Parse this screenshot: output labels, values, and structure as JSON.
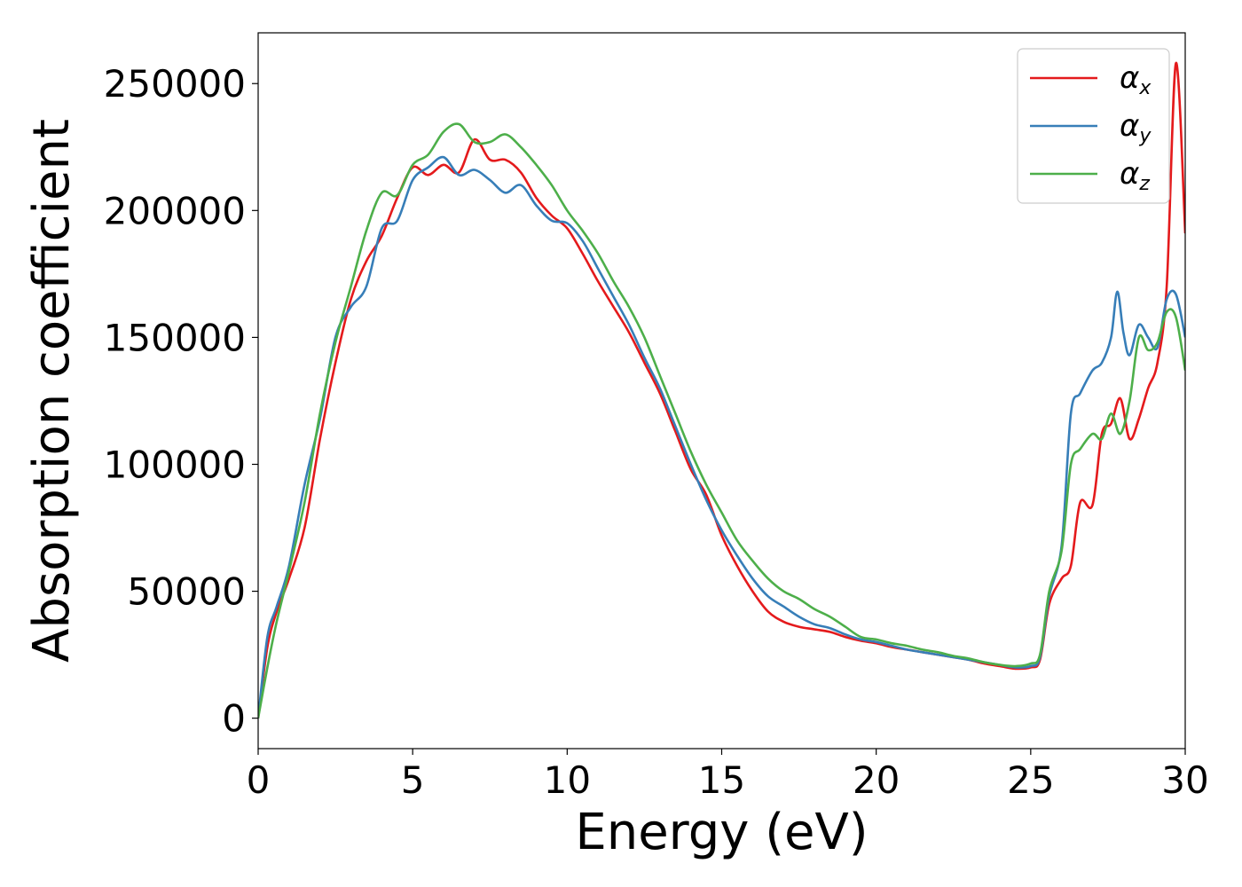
{
  "chart_data": {
    "type": "line",
    "title": "",
    "xlabel": "Energy (eV)",
    "ylabel": "Absorption coefficient",
    "xlim": [
      0,
      30
    ],
    "ylim": [
      -12000,
      270000
    ],
    "xticks": [
      0,
      5,
      10,
      15,
      20,
      25,
      30
    ],
    "xtick_labels": [
      "0",
      "5",
      "10",
      "15",
      "20",
      "25",
      "30"
    ],
    "yticks": [
      0,
      50000,
      100000,
      150000,
      200000,
      250000
    ],
    "ytick_labels": [
      "0",
      "50000",
      "100000",
      "150000",
      "200000",
      "250000"
    ],
    "grid": false,
    "legend_position": "top-right",
    "series": [
      {
        "name": "α_x",
        "legend_symbol": "α",
        "legend_subscript": "x",
        "color": "#e41a1c",
        "x": [
          0,
          0.3,
          0.6,
          1.0,
          1.5,
          2.0,
          2.5,
          3.0,
          3.5,
          4.0,
          4.5,
          5.0,
          5.5,
          6.0,
          6.5,
          7.0,
          7.5,
          8.0,
          8.5,
          9.0,
          9.5,
          10.0,
          10.5,
          11.0,
          11.5,
          12.0,
          12.5,
          13.0,
          13.5,
          14.0,
          14.5,
          15.0,
          15.5,
          16.0,
          16.5,
          17.0,
          17.5,
          18.0,
          18.5,
          19.0,
          19.5,
          20.0,
          20.5,
          21.0,
          21.5,
          22.0,
          22.5,
          23.0,
          23.5,
          24.0,
          24.5,
          25.0,
          25.3,
          25.6,
          26.0,
          26.3,
          26.6,
          27.0,
          27.3,
          27.6,
          27.9,
          28.2,
          28.5,
          28.8,
          29.1,
          29.4,
          29.7,
          30.0
        ],
        "y": [
          0,
          28000,
          42000,
          55000,
          75000,
          110000,
          140000,
          165000,
          180000,
          190000,
          205000,
          217000,
          214000,
          218000,
          215000,
          228000,
          220000,
          220000,
          215000,
          205000,
          198000,
          193000,
          183000,
          172000,
          162000,
          152000,
          140000,
          128000,
          113000,
          98000,
          88000,
          72000,
          60000,
          50000,
          42000,
          38000,
          36000,
          35000,
          34000,
          32000,
          30500,
          29500,
          28000,
          27000,
          26000,
          25000,
          24000,
          23000,
          21500,
          20500,
          19500,
          20000,
          23000,
          45000,
          55000,
          60000,
          85000,
          84000,
          112000,
          116000,
          126000,
          110000,
          118000,
          130000,
          140000,
          170000,
          258000,
          191000
        ]
      },
      {
        "name": "α_y",
        "legend_symbol": "α",
        "legend_subscript": "y",
        "color": "#377eb8",
        "x": [
          0,
          0.3,
          0.6,
          1.0,
          1.5,
          2.0,
          2.5,
          3.0,
          3.5,
          4.0,
          4.5,
          5.0,
          5.5,
          6.0,
          6.5,
          7.0,
          7.5,
          8.0,
          8.5,
          9.0,
          9.5,
          10.0,
          10.5,
          11.0,
          11.5,
          12.0,
          12.5,
          13.0,
          13.5,
          14.0,
          14.5,
          15.0,
          15.5,
          16.0,
          16.5,
          17.0,
          17.5,
          18.0,
          18.5,
          19.0,
          19.5,
          20.0,
          20.5,
          21.0,
          21.5,
          22.0,
          22.5,
          23.0,
          23.5,
          24.0,
          24.5,
          25.0,
          25.3,
          25.6,
          26.0,
          26.3,
          26.6,
          27.0,
          27.3,
          27.6,
          27.8,
          28.0,
          28.2,
          28.5,
          28.8,
          29.1,
          29.4,
          29.7,
          30.0
        ],
        "y": [
          0,
          32000,
          44000,
          60000,
          92000,
          118000,
          150000,
          162000,
          170000,
          193000,
          196000,
          212000,
          217000,
          221000,
          214000,
          216000,
          212000,
          207000,
          210000,
          202000,
          196000,
          195000,
          188000,
          177000,
          166000,
          155000,
          142000,
          130000,
          115000,
          100000,
          86000,
          74000,
          64000,
          55000,
          48000,
          44000,
          40000,
          37000,
          35500,
          33000,
          31000,
          30000,
          28500,
          27000,
          26000,
          25000,
          24000,
          23000,
          22000,
          21000,
          20000,
          20500,
          24000,
          48000,
          68000,
          120000,
          128000,
          137000,
          140000,
          150000,
          168000,
          152000,
          143000,
          155000,
          150000,
          146000,
          165000,
          167000,
          150000
        ]
      },
      {
        "name": "α_z",
        "legend_symbol": "α",
        "legend_subscript": "z",
        "color": "#4daf4a",
        "x": [
          0,
          0.3,
          0.6,
          1.0,
          1.5,
          2.0,
          2.5,
          3.0,
          3.5,
          4.0,
          4.5,
          5.0,
          5.5,
          6.0,
          6.5,
          7.0,
          7.5,
          8.0,
          8.5,
          9.0,
          9.5,
          10.0,
          10.5,
          11.0,
          11.5,
          12.0,
          12.5,
          13.0,
          13.5,
          14.0,
          14.5,
          15.0,
          15.5,
          16.0,
          16.5,
          17.0,
          17.5,
          18.0,
          18.5,
          19.0,
          19.5,
          20.0,
          20.5,
          21.0,
          21.5,
          22.0,
          22.5,
          23.0,
          23.5,
          24.0,
          24.5,
          25.0,
          25.3,
          25.6,
          26.0,
          26.3,
          26.6,
          27.0,
          27.3,
          27.6,
          27.9,
          28.2,
          28.5,
          28.8,
          29.1,
          29.4,
          29.7,
          30.0
        ],
        "y": [
          0,
          20000,
          38000,
          58000,
          85000,
          120000,
          148000,
          170000,
          192000,
          207000,
          206000,
          218000,
          222000,
          231000,
          234000,
          227000,
          227000,
          230000,
          225000,
          218000,
          210000,
          200000,
          192000,
          183000,
          172000,
          162000,
          150000,
          135000,
          120000,
          105000,
          92000,
          81000,
          70000,
          62000,
          55000,
          50000,
          47000,
          43000,
          40000,
          36000,
          32000,
          31000,
          29500,
          28500,
          27000,
          26000,
          24500,
          23500,
          22000,
          21000,
          20500,
          21500,
          25000,
          50000,
          66000,
          100000,
          106000,
          112000,
          110000,
          120000,
          112000,
          125000,
          150000,
          145000,
          148000,
          160000,
          158000,
          137000
        ]
      }
    ]
  }
}
